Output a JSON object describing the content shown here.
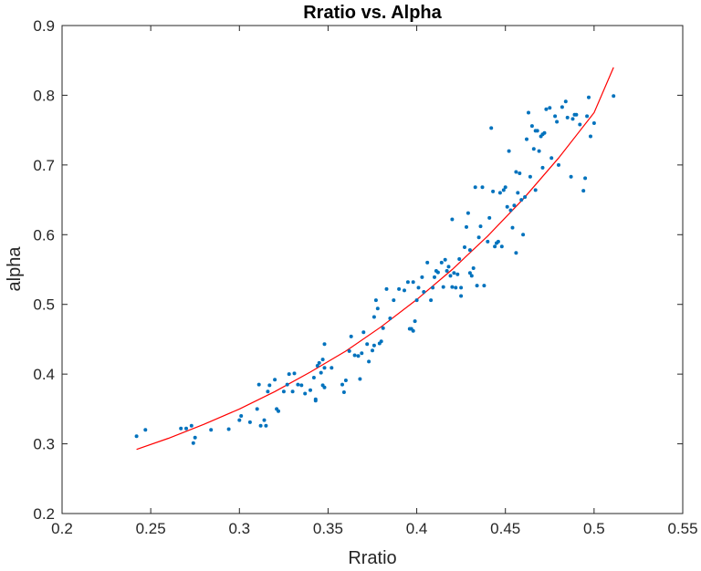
{
  "chart_data": {
    "type": "scatter",
    "title": "Rratio vs. Alpha",
    "xlabel": "Rratio",
    "ylabel": "alpha",
    "xlim": [
      0.2,
      0.55
    ],
    "ylim": [
      0.2,
      0.9
    ],
    "xticks": [
      "0.2",
      "0.25",
      "0.3",
      "0.35",
      "0.4",
      "0.45",
      "0.5",
      "0.55"
    ],
    "yticks": [
      "0.2",
      "0.3",
      "0.4",
      "0.5",
      "0.6",
      "0.7",
      "0.8",
      "0.9"
    ],
    "grid": false,
    "legend": "none",
    "series": [
      {
        "kind": "scatter",
        "color": "#0072BD",
        "points": [
          [
            0.242,
            0.311
          ],
          [
            0.247,
            0.32
          ],
          [
            0.267,
            0.322
          ],
          [
            0.27,
            0.322
          ],
          [
            0.273,
            0.326
          ],
          [
            0.274,
            0.301
          ],
          [
            0.275,
            0.309
          ],
          [
            0.284,
            0.32
          ],
          [
            0.294,
            0.321
          ],
          [
            0.3,
            0.334
          ],
          [
            0.301,
            0.34
          ],
          [
            0.306,
            0.331
          ],
          [
            0.31,
            0.35
          ],
          [
            0.311,
            0.385
          ],
          [
            0.312,
            0.326
          ],
          [
            0.314,
            0.334
          ],
          [
            0.315,
            0.326
          ],
          [
            0.316,
            0.375
          ],
          [
            0.317,
            0.384
          ],
          [
            0.32,
            0.392
          ],
          [
            0.321,
            0.35
          ],
          [
            0.322,
            0.347
          ],
          [
            0.325,
            0.375
          ],
          [
            0.327,
            0.385
          ],
          [
            0.328,
            0.4
          ],
          [
            0.33,
            0.375
          ],
          [
            0.331,
            0.401
          ],
          [
            0.333,
            0.385
          ],
          [
            0.335,
            0.384
          ],
          [
            0.337,
            0.372
          ],
          [
            0.34,
            0.377
          ],
          [
            0.342,
            0.395
          ],
          [
            0.343,
            0.364
          ],
          [
            0.343,
            0.362
          ],
          [
            0.344,
            0.412
          ],
          [
            0.345,
            0.416
          ],
          [
            0.346,
            0.402
          ],
          [
            0.347,
            0.421
          ],
          [
            0.347,
            0.384
          ],
          [
            0.348,
            0.381
          ],
          [
            0.348,
            0.409
          ],
          [
            0.348,
            0.443
          ],
          [
            0.352,
            0.409
          ],
          [
            0.358,
            0.385
          ],
          [
            0.359,
            0.374
          ],
          [
            0.36,
            0.391
          ],
          [
            0.362,
            0.433
          ],
          [
            0.363,
            0.454
          ],
          [
            0.365,
            0.427
          ],
          [
            0.367,
            0.426
          ],
          [
            0.368,
            0.393
          ],
          [
            0.369,
            0.43
          ],
          [
            0.37,
            0.46
          ],
          [
            0.372,
            0.443
          ],
          [
            0.373,
            0.418
          ],
          [
            0.375,
            0.434
          ],
          [
            0.376,
            0.441
          ],
          [
            0.376,
            0.482
          ],
          [
            0.377,
            0.506
          ],
          [
            0.378,
            0.494
          ],
          [
            0.379,
            0.444
          ],
          [
            0.38,
            0.447
          ],
          [
            0.381,
            0.466
          ],
          [
            0.383,
            0.522
          ],
          [
            0.385,
            0.48
          ],
          [
            0.387,
            0.506
          ],
          [
            0.39,
            0.522
          ],
          [
            0.393,
            0.52
          ],
          [
            0.395,
            0.532
          ],
          [
            0.396,
            0.465
          ],
          [
            0.397,
            0.465
          ],
          [
            0.398,
            0.532
          ],
          [
            0.398,
            0.462
          ],
          [
            0.399,
            0.476
          ],
          [
            0.4,
            0.506
          ],
          [
            0.401,
            0.524
          ],
          [
            0.403,
            0.539
          ],
          [
            0.404,
            0.518
          ],
          [
            0.406,
            0.56
          ],
          [
            0.408,
            0.506
          ],
          [
            0.409,
            0.524
          ],
          [
            0.41,
            0.539
          ],
          [
            0.411,
            0.548
          ],
          [
            0.412,
            0.546
          ],
          [
            0.414,
            0.56
          ],
          [
            0.415,
            0.525
          ],
          [
            0.416,
            0.564
          ],
          [
            0.417,
            0.548
          ],
          [
            0.418,
            0.554
          ],
          [
            0.419,
            0.541
          ],
          [
            0.42,
            0.525
          ],
          [
            0.42,
            0.622
          ],
          [
            0.421,
            0.545
          ],
          [
            0.422,
            0.524
          ],
          [
            0.423,
            0.543
          ],
          [
            0.424,
            0.565
          ],
          [
            0.425,
            0.524
          ],
          [
            0.425,
            0.512
          ],
          [
            0.427,
            0.582
          ],
          [
            0.428,
            0.611
          ],
          [
            0.429,
            0.631
          ],
          [
            0.43,
            0.545
          ],
          [
            0.43,
            0.578
          ],
          [
            0.431,
            0.541
          ],
          [
            0.432,
            0.552
          ],
          [
            0.433,
            0.668
          ],
          [
            0.434,
            0.527
          ],
          [
            0.435,
            0.596
          ],
          [
            0.436,
            0.612
          ],
          [
            0.437,
            0.668
          ],
          [
            0.438,
            0.527
          ],
          [
            0.44,
            0.59
          ],
          [
            0.441,
            0.624
          ],
          [
            0.442,
            0.753
          ],
          [
            0.443,
            0.662
          ],
          [
            0.444,
            0.583
          ],
          [
            0.445,
            0.588
          ],
          [
            0.446,
            0.59
          ],
          [
            0.447,
            0.66
          ],
          [
            0.448,
            0.583
          ],
          [
            0.449,
            0.664
          ],
          [
            0.45,
            0.668
          ],
          [
            0.451,
            0.64
          ],
          [
            0.452,
            0.72
          ],
          [
            0.453,
            0.635
          ],
          [
            0.454,
            0.61
          ],
          [
            0.455,
            0.642
          ],
          [
            0.456,
            0.69
          ],
          [
            0.456,
            0.574
          ],
          [
            0.457,
            0.66
          ],
          [
            0.458,
            0.688
          ],
          [
            0.459,
            0.65
          ],
          [
            0.46,
            0.6
          ],
          [
            0.461,
            0.654
          ],
          [
            0.462,
            0.737
          ],
          [
            0.463,
            0.775
          ],
          [
            0.464,
            0.683
          ],
          [
            0.465,
            0.756
          ],
          [
            0.466,
            0.723
          ],
          [
            0.467,
            0.749
          ],
          [
            0.467,
            0.664
          ],
          [
            0.468,
            0.749
          ],
          [
            0.469,
            0.72
          ],
          [
            0.47,
            0.741
          ],
          [
            0.471,
            0.744
          ],
          [
            0.471,
            0.696
          ],
          [
            0.472,
            0.746
          ],
          [
            0.473,
            0.78
          ],
          [
            0.475,
            0.782
          ],
          [
            0.476,
            0.71
          ],
          [
            0.478,
            0.77
          ],
          [
            0.479,
            0.762
          ],
          [
            0.48,
            0.7
          ],
          [
            0.482,
            0.783
          ],
          [
            0.484,
            0.791
          ],
          [
            0.485,
            0.768
          ],
          [
            0.487,
            0.683
          ],
          [
            0.488,
            0.766
          ],
          [
            0.489,
            0.772
          ],
          [
            0.49,
            0.772
          ],
          [
            0.492,
            0.758
          ],
          [
            0.494,
            0.663
          ],
          [
            0.495,
            0.681
          ],
          [
            0.496,
            0.77
          ],
          [
            0.497,
            0.797
          ],
          [
            0.498,
            0.741
          ],
          [
            0.5,
            0.76
          ],
          [
            0.511,
            0.799
          ]
        ]
      },
      {
        "kind": "line",
        "color": "#FF0000",
        "points": [
          [
            0.242,
            0.292
          ],
          [
            0.26,
            0.308
          ],
          [
            0.28,
            0.328
          ],
          [
            0.3,
            0.35
          ],
          [
            0.32,
            0.375
          ],
          [
            0.34,
            0.403
          ],
          [
            0.36,
            0.433
          ],
          [
            0.38,
            0.468
          ],
          [
            0.4,
            0.507
          ],
          [
            0.42,
            0.55
          ],
          [
            0.44,
            0.598
          ],
          [
            0.46,
            0.651
          ],
          [
            0.48,
            0.71
          ],
          [
            0.5,
            0.775
          ],
          [
            0.511,
            0.84
          ]
        ]
      }
    ]
  }
}
